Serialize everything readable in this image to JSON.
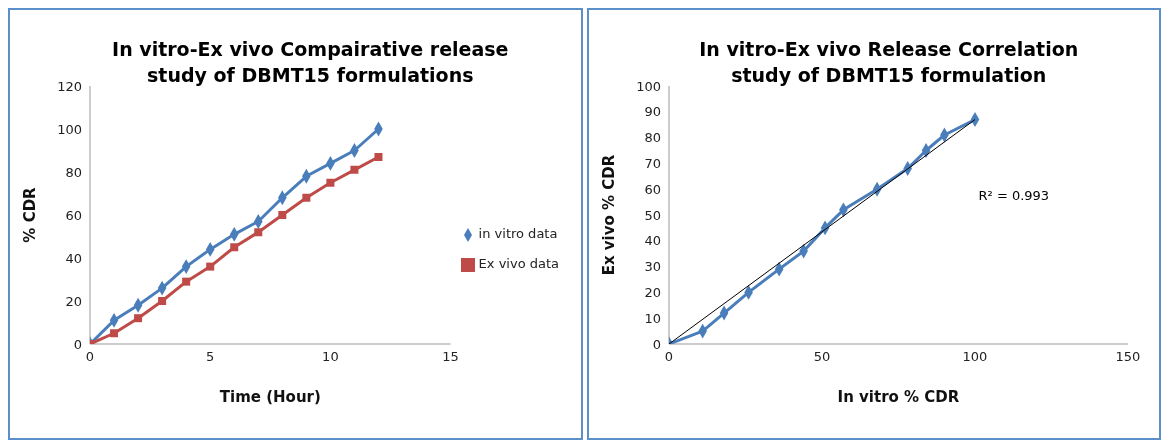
{
  "chart_data": [
    {
      "type": "line",
      "title": "In vitro-Ex vivo Compairative release study of DBMT15 formulations",
      "xlabel": "Time (Hour)",
      "ylabel": "% CDR",
      "x": [
        0,
        1,
        2,
        3,
        4,
        5,
        6,
        7,
        8,
        9,
        10,
        11,
        12
      ],
      "series": [
        {
          "name": "in vitro data",
          "color": "#4a7ebb",
          "marker": "diamond",
          "values": [
            0,
            11,
            18,
            26,
            36,
            44,
            51,
            57,
            68,
            78,
            84,
            90,
            100
          ]
        },
        {
          "name": "Ex vivo data",
          "color": "#be4b48",
          "marker": "square",
          "values": [
            0,
            5,
            12,
            20,
            29,
            36,
            45,
            52,
            60,
            68,
            75,
            81,
            87
          ]
        }
      ],
      "xlim": [
        0,
        15
      ],
      "xticks": [
        0,
        5,
        10,
        15
      ],
      "ylim": [
        0,
        120
      ],
      "yticks": [
        0,
        20,
        40,
        60,
        80,
        100,
        120
      ],
      "grid": false,
      "legend": "right"
    },
    {
      "type": "line",
      "title": "In vitro-Ex vivo Release Correlation study of DBMT15 formulation",
      "xlabel": "In vitro % CDR",
      "ylabel": "Ex vivo % CDR",
      "annotations": [
        "R² = 0.993"
      ],
      "series": [
        {
          "color": "#4a7ebb",
          "marker": "diamond",
          "x": [
            0,
            11,
            18,
            26,
            36,
            44,
            51,
            57,
            68,
            78,
            84,
            90,
            100
          ],
          "values": [
            0,
            5,
            12,
            20,
            29,
            36,
            45,
            52,
            60,
            68,
            75,
            81,
            87
          ]
        },
        {
          "color": "#000000",
          "marker": "none",
          "x": [
            0,
            100
          ],
          "values": [
            0,
            87
          ]
        }
      ],
      "xlim": [
        0,
        150
      ],
      "xticks": [
        0,
        50,
        100,
        150
      ],
      "ylim": [
        0,
        100
      ],
      "yticks": [
        0,
        10,
        20,
        30,
        40,
        50,
        60,
        70,
        80,
        90,
        100
      ],
      "grid": false,
      "legend": false
    }
  ]
}
